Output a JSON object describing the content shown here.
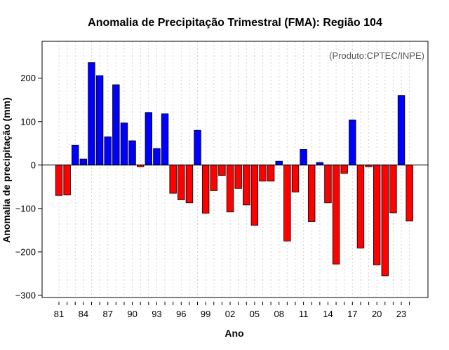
{
  "chart_data": {
    "type": "bar",
    "title": "Anomalia de Precipitação Trimestral (FMA): Região 104",
    "xlabel": "Ano",
    "ylabel": "Anomalia de precipitação (mm)",
    "annotation": "(Produto:CPTEC/INPE)",
    "ylim": [
      -305,
      285
    ],
    "yticks": [
      -300,
      -200,
      -100,
      0,
      100,
      200
    ],
    "ytick_labels": [
      "−300",
      "−200",
      "−100",
      "0",
      "100",
      "200"
    ],
    "xtick_labels": [
      "81",
      "84",
      "87",
      "90",
      "93",
      "96",
      "99",
      "02",
      "05",
      "08",
      "11",
      "14",
      "17",
      "20",
      "23"
    ],
    "xtick_years": [
      1981,
      1984,
      1987,
      1990,
      1993,
      1996,
      1999,
      2002,
      2005,
      2008,
      2011,
      2014,
      2017,
      2020,
      2023
    ],
    "x": [
      1981,
      1982,
      1983,
      1984,
      1985,
      1986,
      1987,
      1988,
      1989,
      1990,
      1991,
      1992,
      1993,
      1994,
      1995,
      1996,
      1997,
      1998,
      1999,
      2000,
      2001,
      2002,
      2003,
      2004,
      2005,
      2006,
      2007,
      2008,
      2009,
      2010,
      2011,
      2012,
      2013,
      2014,
      2015,
      2016,
      2017,
      2018,
      2019,
      2020,
      2021,
      2022,
      2023,
      2024
    ],
    "values": [
      -70,
      -69,
      46,
      14,
      236,
      206,
      65,
      185,
      97,
      56,
      -4,
      121,
      38,
      118,
      -65,
      -80,
      -87,
      80,
      -111,
      -59,
      -24,
      -108,
      -54,
      -92,
      -139,
      -37,
      -37,
      9,
      -175,
      -62,
      36,
      -130,
      6,
      -87,
      -228,
      -19,
      104,
      -191,
      -4,
      -230,
      -255,
      -110,
      160,
      -129
    ],
    "colors": {
      "positive": "#0000ff",
      "negative": "#ff0000",
      "grid": "#d3d3d3",
      "zero_line": "#000000"
    }
  }
}
